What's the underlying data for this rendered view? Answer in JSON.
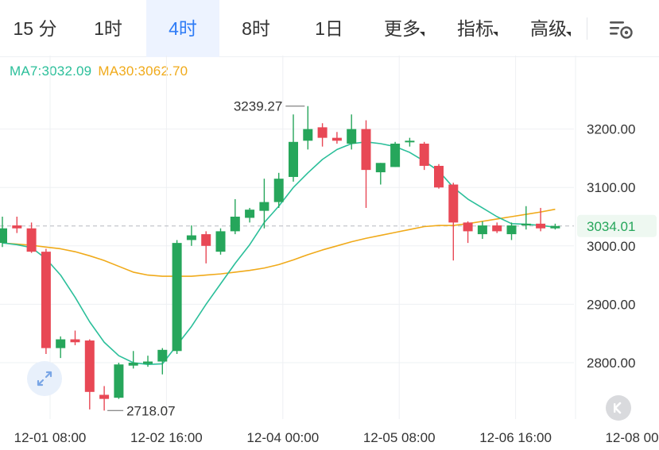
{
  "tabs": [
    {
      "label": "15 分",
      "active": false,
      "dropdown": false
    },
    {
      "label": "1时",
      "active": false,
      "dropdown": false
    },
    {
      "label": "4时",
      "active": true,
      "dropdown": false
    },
    {
      "label": "8时",
      "active": false,
      "dropdown": false
    },
    {
      "label": "1日",
      "active": false,
      "dropdown": false
    },
    {
      "label": "更多",
      "active": false,
      "dropdown": true
    },
    {
      "label": "指标",
      "active": false,
      "dropdown": true
    },
    {
      "label": "高级",
      "active": false,
      "dropdown": true
    }
  ],
  "indicators": {
    "ma7": "MA7:3032.09",
    "ma30": "MA30:3062.70"
  },
  "icons": {
    "settings": "chart-settings-icon",
    "expand": "expand-arrows-icon",
    "back": "skip-to-latest-icon"
  },
  "colors": {
    "up": "#26a65b",
    "down": "#e84855",
    "ma7": "#2bbf9a",
    "ma30": "#f0aa1a",
    "active_tab": "#2f7cf6",
    "current_price_bg": "#eef8f1",
    "current_price_text": "#26a65b"
  },
  "chart_data": {
    "type": "candlestick",
    "ylim": [
      2700,
      3310
    ],
    "y_ticks": [
      3200,
      3100,
      3000,
      2900,
      2800
    ],
    "y_tick_labels": [
      "3200.00",
      "3100.00",
      "3000.00",
      "2900.00",
      "2800.00"
    ],
    "x_tick_labels": [
      "12-01 08:00",
      "12-02 16:00",
      "12-04 00:00",
      "12-05 08:00",
      "12-06 16:00",
      "12-08 00"
    ],
    "x_tick_indices": [
      0,
      8,
      16,
      24,
      32,
      40
    ],
    "grid": true,
    "current_price": "3034.01",
    "current_price_value": 3034.01,
    "max_label": "3239.27",
    "max_value": 3239.27,
    "max_index": 21,
    "min_label": "2718.07",
    "min_value": 2718.07,
    "min_index": 7,
    "candles": [
      {
        "open": 3005,
        "high": 3050,
        "low": 2998,
        "close": 3030
      },
      {
        "open": 3035,
        "high": 3050,
        "low": 3022,
        "close": 3030
      },
      {
        "open": 3030,
        "high": 3040,
        "low": 2988,
        "close": 2990
      },
      {
        "open": 2990,
        "high": 2995,
        "low": 2815,
        "close": 2825
      },
      {
        "open": 2825,
        "high": 2845,
        "low": 2808,
        "close": 2840
      },
      {
        "open": 2840,
        "high": 2855,
        "low": 2830,
        "close": 2835
      },
      {
        "open": 2838,
        "high": 2840,
        "low": 2720,
        "close": 2750
      },
      {
        "open": 2745,
        "high": 2760,
        "low": 2718.07,
        "close": 2738
      },
      {
        "open": 2740,
        "high": 2800,
        "low": 2738,
        "close": 2797
      },
      {
        "open": 2795,
        "high": 2820,
        "low": 2790,
        "close": 2800
      },
      {
        "open": 2798,
        "high": 2812,
        "low": 2793,
        "close": 2802
      },
      {
        "open": 2802,
        "high": 2825,
        "low": 2780,
        "close": 2822
      },
      {
        "open": 2820,
        "high": 3010,
        "low": 2815,
        "close": 3005
      },
      {
        "open": 3010,
        "high": 3035,
        "low": 3000,
        "close": 3018
      },
      {
        "open": 3020,
        "high": 3025,
        "low": 2970,
        "close": 3000
      },
      {
        "open": 2990,
        "high": 3030,
        "low": 2985,
        "close": 3025
      },
      {
        "open": 3025,
        "high": 3080,
        "low": 3020,
        "close": 3050
      },
      {
        "open": 3048,
        "high": 3065,
        "low": 3040,
        "close": 3062
      },
      {
        "open": 3060,
        "high": 3115,
        "low": 3030,
        "close": 3075
      },
      {
        "open": 3075,
        "high": 3125,
        "low": 3065,
        "close": 3115
      },
      {
        "open": 3118,
        "high": 3225,
        "low": 3110,
        "close": 3178
      },
      {
        "open": 3180,
        "high": 3239.27,
        "low": 3165,
        "close": 3200
      },
      {
        "open": 3203,
        "high": 3210,
        "low": 3170,
        "close": 3185
      },
      {
        "open": 3185,
        "high": 3195,
        "low": 3175,
        "close": 3180
      },
      {
        "open": 3175,
        "high": 3225,
        "low": 3165,
        "close": 3200
      },
      {
        "open": 3200,
        "high": 3215,
        "low": 3065,
        "close": 3130
      },
      {
        "open": 3126,
        "high": 3142,
        "low": 3105,
        "close": 3142
      },
      {
        "open": 3135,
        "high": 3178,
        "low": 3135,
        "close": 3175
      },
      {
        "open": 3178,
        "high": 3185,
        "low": 3170,
        "close": 3180
      },
      {
        "open": 3175,
        "high": 3178,
        "low": 3130,
        "close": 3137
      },
      {
        "open": 3137,
        "high": 3140,
        "low": 3098,
        "close": 3100
      },
      {
        "open": 3105,
        "high": 3108,
        "low": 2975,
        "close": 3040
      },
      {
        "open": 3040,
        "high": 3042,
        "low": 3005,
        "close": 3025
      },
      {
        "open": 3020,
        "high": 3042,
        "low": 3012,
        "close": 3035
      },
      {
        "open": 3035,
        "high": 3040,
        "low": 3022,
        "close": 3025
      },
      {
        "open": 3020,
        "high": 3040,
        "low": 3010,
        "close": 3035
      },
      {
        "open": 3035,
        "high": 3068,
        "low": 3028,
        "close": 3038
      },
      {
        "open": 3038,
        "high": 3065,
        "low": 3025,
        "close": 3030
      },
      {
        "open": 3030,
        "high": 3038,
        "low": 3028,
        "close": 3034.01
      }
    ],
    "ma7": [
      3005,
      3002,
      2997,
      2978,
      2950,
      2912,
      2870,
      2835,
      2812,
      2800,
      2797,
      2798,
      2830,
      2862,
      2900,
      2935,
      2970,
      3002,
      3040,
      3068,
      3100,
      3125,
      3148,
      3165,
      3175,
      3178,
      3175,
      3170,
      3160,
      3145,
      3128,
      3100,
      3080,
      3065,
      3050,
      3038,
      3037,
      3035,
      3032.09
    ],
    "ma30": [
      3005,
      3003,
      3001,
      2998,
      2995,
      2990,
      2983,
      2975,
      2965,
      2955,
      2950,
      2948,
      2948,
      2948,
      2950,
      2952,
      2955,
      2958,
      2962,
      2968,
      2976,
      2985,
      2993,
      3000,
      3007,
      3013,
      3018,
      3023,
      3028,
      3033,
      3035,
      3035,
      3038,
      3042,
      3046,
      3050,
      3054,
      3058,
      3062.7
    ]
  }
}
